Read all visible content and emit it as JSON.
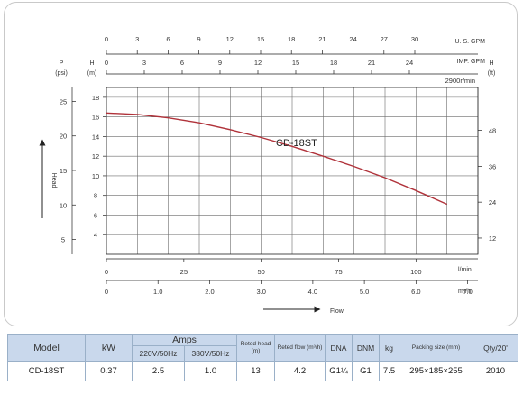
{
  "chart_data": {
    "type": "line",
    "series": [
      {
        "name": "CD-18ST",
        "x": [
          0,
          10,
          20,
          30,
          40,
          50,
          60,
          70,
          80,
          90,
          100,
          110
        ],
        "y": [
          16.4,
          16.25,
          15.9,
          15.4,
          14.7,
          13.9,
          13.0,
          12.0,
          10.95,
          9.8,
          8.5,
          7.1
        ],
        "color": "#b0323a"
      }
    ],
    "x_axis": {
      "label": "l/min",
      "range": [
        0,
        120
      ],
      "ticks": [
        "0",
        "25",
        "50",
        "75",
        "100"
      ]
    },
    "x_axis_m3h": {
      "label": "m³/h",
      "ticks": [
        "0",
        "1.0",
        "2.0",
        "3.0",
        "4.0",
        "5.0",
        "6.0",
        "7.0"
      ]
    },
    "x_axis_usgpm": {
      "label": "U. S. GPM",
      "ticks": [
        "0",
        "3",
        "6",
        "9",
        "12",
        "15",
        "18",
        "21",
        "24",
        "27",
        "30"
      ]
    },
    "x_axis_impgpm": {
      "label": "IMP. GPM",
      "ticks": [
        "0",
        "3",
        "6",
        "9",
        "12",
        "15",
        "18",
        "21",
        "24"
      ]
    },
    "y_axis_m": {
      "label_top": "H",
      "label_unit": "(m)",
      "range": [
        2,
        19
      ],
      "ticks": [
        "4",
        "6",
        "8",
        "10",
        "12",
        "14",
        "16",
        "18"
      ]
    },
    "y_axis_psi": {
      "label_top": "P",
      "label_unit": "(psi)",
      "ticks": [
        "5",
        "10",
        "15",
        "20",
        "25"
      ]
    },
    "y_axis_ft": {
      "label_top": "H",
      "label_unit": "(ft)",
      "ticks": [
        "12",
        "24",
        "36",
        "48"
      ]
    },
    "speed_note": "2900r/min",
    "head_label": "Head",
    "flow_label": "Flow",
    "grid": true
  },
  "table": {
    "headers": {
      "model": "Model",
      "kw": "kW",
      "amps": "Amps",
      "amps_220": "220V/50Hz",
      "amps_380": "380V/50Hz",
      "rated_head": "Reted head (m)",
      "rated_flow": "Reted flow (m³/h)",
      "dna": "DNA",
      "dnm": "DNM",
      "kg": "kg",
      "packing": "Packing size (mm)",
      "qty": "Qty/20'"
    },
    "row": {
      "model": "CD-18ST",
      "kw": "0.37",
      "amps_220": "2.5",
      "amps_380": "1.0",
      "rated_head": "13",
      "rated_flow": "4.2",
      "dna": "G1¼",
      "dnm": "G1",
      "kg": "7.5",
      "packing": "295×185×255",
      "qty": "2010"
    }
  }
}
